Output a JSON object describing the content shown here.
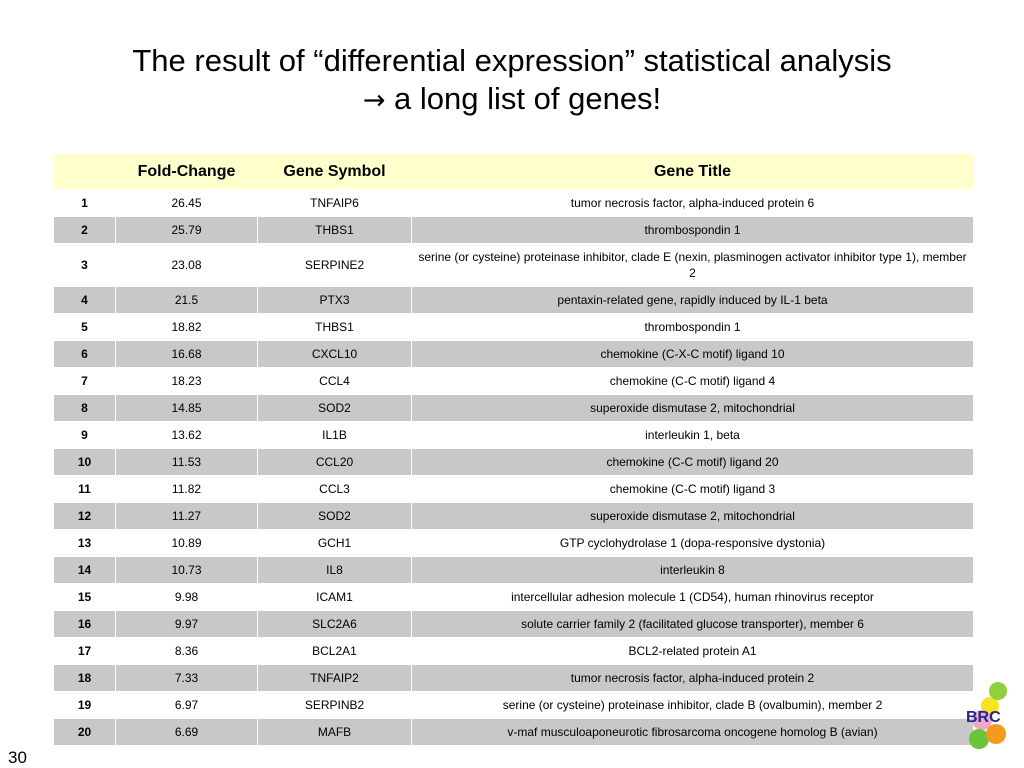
{
  "slide": {
    "title_line1": "The result of “differential expression” statistical analysis",
    "title_arrow": "→",
    "title_line2": " a long list of genes!",
    "number": "30",
    "logo_text": "BRC"
  },
  "table": {
    "headers": [
      "",
      "Fold-Change",
      "Gene Symbol",
      "Gene Title"
    ],
    "rows": [
      {
        "rank": "1",
        "fold_change": "26.45",
        "symbol": "TNFAIP6",
        "title": "tumor necrosis factor, alpha-induced protein 6"
      },
      {
        "rank": "2",
        "fold_change": "25.79",
        "symbol": "THBS1",
        "title": "thrombospondin 1"
      },
      {
        "rank": "3",
        "fold_change": "23.08",
        "symbol": "SERPINE2",
        "title": "serine (or cysteine) proteinase inhibitor, clade E (nexin, plasminogen activator inhibitor type 1), member 2"
      },
      {
        "rank": "4",
        "fold_change": "21.5",
        "symbol": "PTX3",
        "title": "pentaxin-related gene, rapidly induced by IL-1 beta"
      },
      {
        "rank": "5",
        "fold_change": "18.82",
        "symbol": "THBS1",
        "title": "thrombospondin 1"
      },
      {
        "rank": "6",
        "fold_change": "16.68",
        "symbol": "CXCL10",
        "title": "chemokine (C-X-C motif) ligand 10"
      },
      {
        "rank": "7",
        "fold_change": "18.23",
        "symbol": "CCL4",
        "title": "chemokine (C-C motif) ligand 4"
      },
      {
        "rank": "8",
        "fold_change": "14.85",
        "symbol": "SOD2",
        "title": "superoxide dismutase 2, mitochondrial"
      },
      {
        "rank": "9",
        "fold_change": "13.62",
        "symbol": "IL1B",
        "title": "interleukin 1, beta"
      },
      {
        "rank": "10",
        "fold_change": "11.53",
        "symbol": "CCL20",
        "title": "chemokine (C-C motif) ligand 20"
      },
      {
        "rank": "11",
        "fold_change": "11.82",
        "symbol": "CCL3",
        "title": "chemokine (C-C motif) ligand 3"
      },
      {
        "rank": "12",
        "fold_change": "11.27",
        "symbol": "SOD2",
        "title": "superoxide dismutase 2, mitochondrial"
      },
      {
        "rank": "13",
        "fold_change": "10.89",
        "symbol": "GCH1",
        "title": "GTP cyclohydrolase 1 (dopa-responsive dystonia)"
      },
      {
        "rank": "14",
        "fold_change": "10.73",
        "symbol": "IL8",
        "title": "interleukin 8"
      },
      {
        "rank": "15",
        "fold_change": "9.98",
        "symbol": "ICAM1",
        "title": "intercellular adhesion molecule 1 (CD54), human rhinovirus receptor"
      },
      {
        "rank": "16",
        "fold_change": "9.97",
        "symbol": "SLC2A6",
        "title": "solute carrier family 2 (facilitated glucose transporter), member 6"
      },
      {
        "rank": "17",
        "fold_change": "8.36",
        "symbol": "BCL2A1",
        "title": "BCL2-related protein A1"
      },
      {
        "rank": "18",
        "fold_change": "7.33",
        "symbol": "TNFAIP2",
        "title": "tumor necrosis factor, alpha-induced protein 2"
      },
      {
        "rank": "19",
        "fold_change": "6.97",
        "symbol": "SERPINB2",
        "title": "serine (or cysteine) proteinase inhibitor, clade B (ovalbumin), member 2"
      },
      {
        "rank": "20",
        "fold_change": "6.69",
        "symbol": "MAFB",
        "title": "v-maf musculoaponeurotic fibrosarcoma oncogene homolog B (avian)"
      }
    ]
  },
  "colors": {
    "header_bg": "#ffffcc",
    "row_shade": "#c8c8c8",
    "logo_text": "#1e2a8c"
  }
}
